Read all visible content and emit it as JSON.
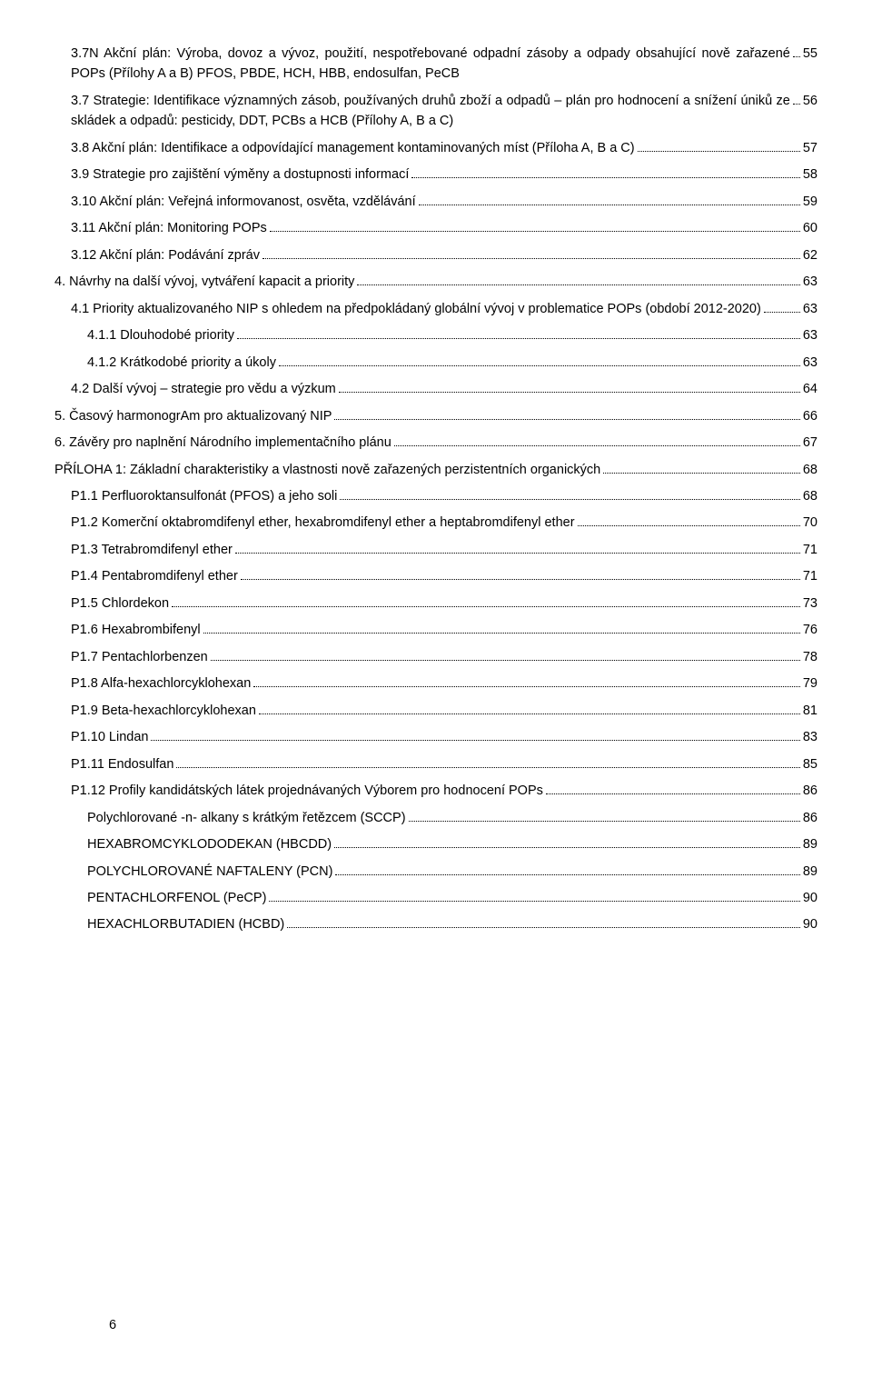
{
  "page_number": "6",
  "toc": [
    {
      "indent": 1,
      "label": "3.7N Akční plán: Výroba, dovoz a vývoz, použití, nespotřebované odpadní zásoby a odpady obsahující nově zařazené POPs (Přílohy A a B) PFOS, PBDE, HCH, HBB, endosulfan, PeCB",
      "page": "55"
    },
    {
      "indent": 1,
      "label": "3.7 Strategie: Identifikace významných zásob, používaných druhů zboží a odpadů – plán pro hodnocení a snížení úniků ze skládek a odpadů: pesticidy, DDT, PCBs a HCB (Přílohy A, B a C)",
      "page": "56"
    },
    {
      "indent": 1,
      "label": "3.8 Akční plán: Identifikace a odpovídající management kontaminovaných míst (Příloha A, B a C)",
      "page": "57"
    },
    {
      "indent": 1,
      "label": "3.9 Strategie pro zajištění výměny a dostupnosti informací",
      "page": "58"
    },
    {
      "indent": 1,
      "label": "3.10    Akční plán: Veřejná informovanost, osvěta, vzdělávání",
      "page": "59"
    },
    {
      "indent": 1,
      "label": "3.11 Akční plán: Monitoring POPs",
      "page": "60"
    },
    {
      "indent": 1,
      "label": "3.12    Akční plán: Podávání zpráv",
      "page": "62"
    },
    {
      "indent": 0,
      "label": "4. Návrhy na další vývoj, vytváření kapacit a priority",
      "page": "63"
    },
    {
      "indent": 1,
      "label": "4.1 Priority aktualizovaného NIP s ohledem na předpokládaný globální vývoj v problematice POPs (období 2012-2020)",
      "page": "63"
    },
    {
      "indent": 2,
      "label": "4.1.1 Dlouhodobé priority",
      "page": "63"
    },
    {
      "indent": 2,
      "label": "4.1.2 Krátkodobé priority a úkoly",
      "page": "63"
    },
    {
      "indent": 1,
      "label": "4.2 Další vývoj – strategie pro vědu a výzkum",
      "page": "64"
    },
    {
      "indent": 0,
      "label": "5. Časový harmonogrAm pro aktualizovaný NIP",
      "page": "66"
    },
    {
      "indent": 0,
      "label": "6. Závěry pro naplnění Národního implementačního plánu",
      "page": "67"
    },
    {
      "indent": 0,
      "label": "PŘÍLOHA 1: Základní charakteristiky a vlastnosti nově zařazených perzistentních organických",
      "page": "68"
    },
    {
      "indent": 1,
      "label": "P1.1 Perfluoroktansulfonát (PFOS) a jeho soli",
      "page": "68"
    },
    {
      "indent": 1,
      "label": "P1.2 Komerční oktabromdifenyl ether, hexabromdifenyl ether a heptabromdifenyl ether",
      "page": "70"
    },
    {
      "indent": 1,
      "label": "P1.3 Tetrabromdifenyl ether",
      "page": "71"
    },
    {
      "indent": 1,
      "label": "P1.4 Pentabromdifenyl ether",
      "page": "71"
    },
    {
      "indent": 1,
      "label": "P1.5 Chlordekon",
      "page": "73"
    },
    {
      "indent": 1,
      "label": "P1.6 Hexabrombifenyl",
      "page": "76"
    },
    {
      "indent": 1,
      "label": "P1.7 Pentachlorbenzen",
      "page": "78"
    },
    {
      "indent": 1,
      "label": "P1.8 Alfa-hexachlorcyklohexan",
      "page": "79"
    },
    {
      "indent": 1,
      "label": "P1.9 Beta-hexachlorcyklohexan",
      "page": "81"
    },
    {
      "indent": 1,
      "label": "P1.10 Lindan",
      "page": "83"
    },
    {
      "indent": 1,
      "label": "P1.11 Endosulfan",
      "page": "85"
    },
    {
      "indent": 1,
      "label": "P1.12 Profily kandidátských látek projednávaných Výborem pro hodnocení POPs",
      "page": "86"
    },
    {
      "indent": 2,
      "label": "Polychlorované -n- alkany s krátkým řetězcem (SCCP)",
      "page": "86"
    },
    {
      "indent": 2,
      "label": "HEXABROMCYKLODODEKAN (HBCDD)",
      "page": "89"
    },
    {
      "indent": 2,
      "label": "POLYCHLOROVANÉ NAFTALENY (PCN)",
      "page": "89"
    },
    {
      "indent": 2,
      "label": "PENTACHLORFENOL (PeCP)",
      "page": "90"
    },
    {
      "indent": 2,
      "label": "HEXACHLORBUTADIEN (HCBD)",
      "page": "90"
    }
  ]
}
